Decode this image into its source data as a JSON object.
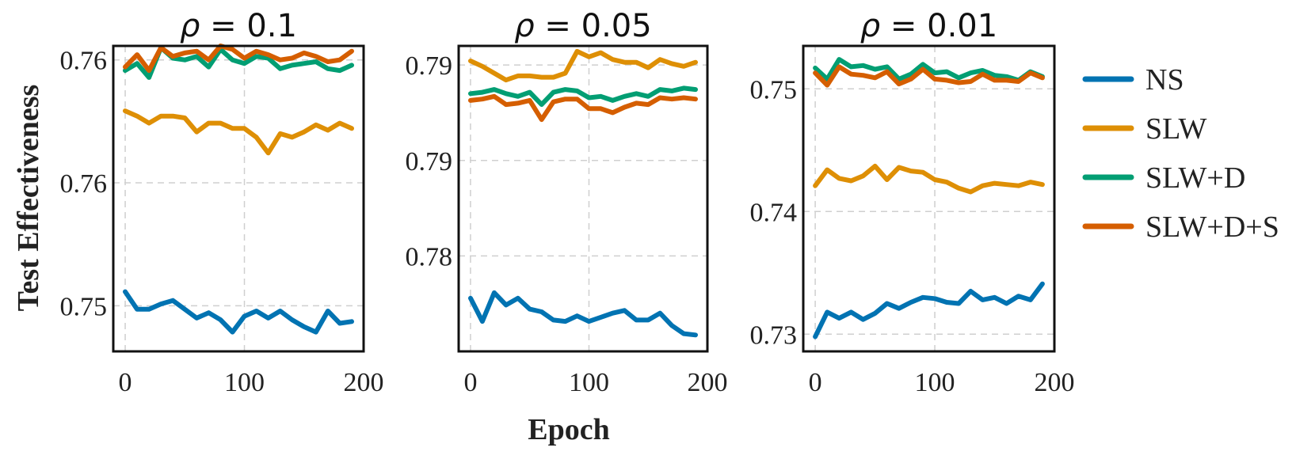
{
  "chart_data": {
    "type": "line",
    "ylabel": "Test Effectiveness",
    "xlabel": "Epoch",
    "legend": {
      "placement": "right",
      "items": [
        {
          "name": "NS",
          "color": "#0173b2"
        },
        {
          "name": "SLW",
          "color": "#de8f05"
        },
        {
          "name": "SLW+D",
          "color": "#029e73"
        },
        {
          "name": "SLW+D+S",
          "color": "#d55e00"
        }
      ]
    },
    "panels": [
      {
        "title_symbol": "ρ",
        "title_value": "= 0.1",
        "xlim": [
          -10,
          200
        ],
        "xticks": [
          {
            "v": 0,
            "label": "0"
          },
          {
            "v": 100,
            "label": "100"
          },
          {
            "v": 200,
            "label": "200"
          }
        ],
        "ylim": [
          0.7459,
          0.7633
        ],
        "yticks": [
          {
            "v": 0.7485,
            "label": "0.75"
          },
          {
            "v": 0.7555,
            "label": "0.76"
          },
          {
            "v": 0.7625,
            "label": "0.76"
          }
        ],
        "x": [
          0,
          10,
          20,
          30,
          40,
          50,
          60,
          70,
          80,
          90,
          100,
          110,
          120,
          130,
          140,
          150,
          160,
          170,
          180,
          190
        ],
        "series": [
          {
            "name": "NS",
            "values": [
              0.7493,
              0.7483,
              0.7483,
              0.7486,
              0.7488,
              0.7483,
              0.7478,
              0.7481,
              0.7477,
              0.747,
              0.7479,
              0.7482,
              0.7478,
              0.7482,
              0.7477,
              0.7473,
              0.747,
              0.7482,
              0.7475,
              0.7476
            ]
          },
          {
            "name": "SLW",
            "values": [
              0.7596,
              0.7593,
              0.7589,
              0.7593,
              0.7593,
              0.7592,
              0.7584,
              0.7589,
              0.7589,
              0.7586,
              0.7586,
              0.7581,
              0.7572,
              0.7583,
              0.7581,
              0.7584,
              0.7588,
              0.7585,
              0.7589,
              0.7586
            ]
          },
          {
            "name": "SLW+D",
            "values": [
              0.7619,
              0.7623,
              0.7615,
              0.7632,
              0.7626,
              0.7625,
              0.7627,
              0.7621,
              0.7631,
              0.7625,
              0.7623,
              0.7627,
              0.7626,
              0.762,
              0.7622,
              0.7623,
              0.7624,
              0.762,
              0.7619,
              0.7622
            ]
          },
          {
            "name": "SLW+D+S",
            "values": [
              0.7621,
              0.7628,
              0.7619,
              0.7632,
              0.7627,
              0.7629,
              0.763,
              0.7625,
              0.7633,
              0.7631,
              0.7626,
              0.763,
              0.7628,
              0.7625,
              0.7626,
              0.7629,
              0.7627,
              0.7624,
              0.7625,
              0.763
            ]
          }
        ]
      },
      {
        "title_symbol": "ρ",
        "title_value": "= 0.05",
        "xlim": [
          -10,
          200
        ],
        "xticks": [
          {
            "v": 0,
            "label": "0"
          },
          {
            "v": 100,
            "label": "100"
          },
          {
            "v": 200,
            "label": "200"
          }
        ],
        "ylim": [
          0.7725,
          0.7949
        ],
        "yticks": [
          {
            "v": 0.7795,
            "label": "0.78"
          },
          {
            "v": 0.7865,
            "label": "0.79"
          },
          {
            "v": 0.7935,
            "label": "0.79"
          }
        ],
        "x": [
          0,
          10,
          20,
          30,
          40,
          50,
          60,
          70,
          80,
          90,
          100,
          110,
          120,
          130,
          140,
          150,
          160,
          170,
          180,
          190
        ],
        "series": [
          {
            "name": "NS",
            "values": [
              0.7764,
              0.7747,
              0.7768,
              0.7759,
              0.7764,
              0.7756,
              0.7754,
              0.7748,
              0.7747,
              0.7751,
              0.7747,
              0.775,
              0.7753,
              0.7755,
              0.7748,
              0.7748,
              0.7753,
              0.7744,
              0.7738,
              0.7737
            ]
          },
          {
            "name": "SLW",
            "values": [
              0.7938,
              0.7934,
              0.7929,
              0.7924,
              0.7927,
              0.7927,
              0.7926,
              0.7926,
              0.7929,
              0.7945,
              0.7941,
              0.7944,
              0.7939,
              0.7937,
              0.7937,
              0.7933,
              0.7939,
              0.7936,
              0.7934,
              0.7937
            ]
          },
          {
            "name": "SLW+D",
            "values": [
              0.7914,
              0.7915,
              0.7917,
              0.7914,
              0.7912,
              0.7915,
              0.7906,
              0.7915,
              0.7917,
              0.7916,
              0.7911,
              0.7912,
              0.7909,
              0.7912,
              0.7914,
              0.7912,
              0.7917,
              0.7916,
              0.7918,
              0.7917
            ]
          },
          {
            "name": "SLW+D+S",
            "values": [
              0.7909,
              0.791,
              0.7912,
              0.7906,
              0.7907,
              0.7909,
              0.7895,
              0.7908,
              0.791,
              0.791,
              0.7903,
              0.7903,
              0.79,
              0.7904,
              0.7907,
              0.7906,
              0.7911,
              0.791,
              0.7911,
              0.791
            ]
          }
        ]
      },
      {
        "title_symbol": "ρ",
        "title_value": "= 0.01",
        "xlim": [
          -10,
          200
        ],
        "xticks": [
          {
            "v": 0,
            "label": "0"
          },
          {
            "v": 100,
            "label": "100"
          },
          {
            "v": 200,
            "label": "200"
          }
        ],
        "ylim": [
          0.7286,
          0.7535
        ],
        "yticks": [
          {
            "v": 0.73,
            "label": "0.73"
          },
          {
            "v": 0.74,
            "label": "0.74"
          },
          {
            "v": 0.75,
            "label": "0.75"
          }
        ],
        "x": [
          0,
          10,
          20,
          30,
          40,
          50,
          60,
          70,
          80,
          90,
          100,
          110,
          120,
          130,
          140,
          150,
          160,
          170,
          180,
          190
        ],
        "series": [
          {
            "name": "NS",
            "values": [
              0.7298,
              0.7318,
              0.7313,
              0.7318,
              0.7312,
              0.7317,
              0.7325,
              0.7321,
              0.7326,
              0.733,
              0.7329,
              0.7326,
              0.7325,
              0.7335,
              0.7328,
              0.733,
              0.7325,
              0.7331,
              0.7328,
              0.7341
            ]
          },
          {
            "name": "SLW",
            "values": [
              0.7421,
              0.7434,
              0.7427,
              0.7425,
              0.7429,
              0.7437,
              0.7426,
              0.7436,
              0.7433,
              0.7432,
              0.7426,
              0.7424,
              0.7419,
              0.7416,
              0.7421,
              0.7423,
              0.7422,
              0.7421,
              0.7424,
              0.7422
            ]
          },
          {
            "name": "SLW+D",
            "values": [
              0.7517,
              0.7508,
              0.7524,
              0.7518,
              0.7519,
              0.7516,
              0.7518,
              0.7508,
              0.7512,
              0.752,
              0.7513,
              0.7514,
              0.7509,
              0.7513,
              0.7515,
              0.7511,
              0.751,
              0.7507,
              0.7514,
              0.751
            ]
          },
          {
            "name": "SLW+D+S",
            "values": [
              0.7513,
              0.7503,
              0.7518,
              0.7512,
              0.7511,
              0.7509,
              0.7514,
              0.7504,
              0.7508,
              0.7516,
              0.7508,
              0.7507,
              0.7505,
              0.7506,
              0.7512,
              0.7507,
              0.7507,
              0.7506,
              0.7513,
              0.7509
            ]
          }
        ]
      }
    ]
  }
}
